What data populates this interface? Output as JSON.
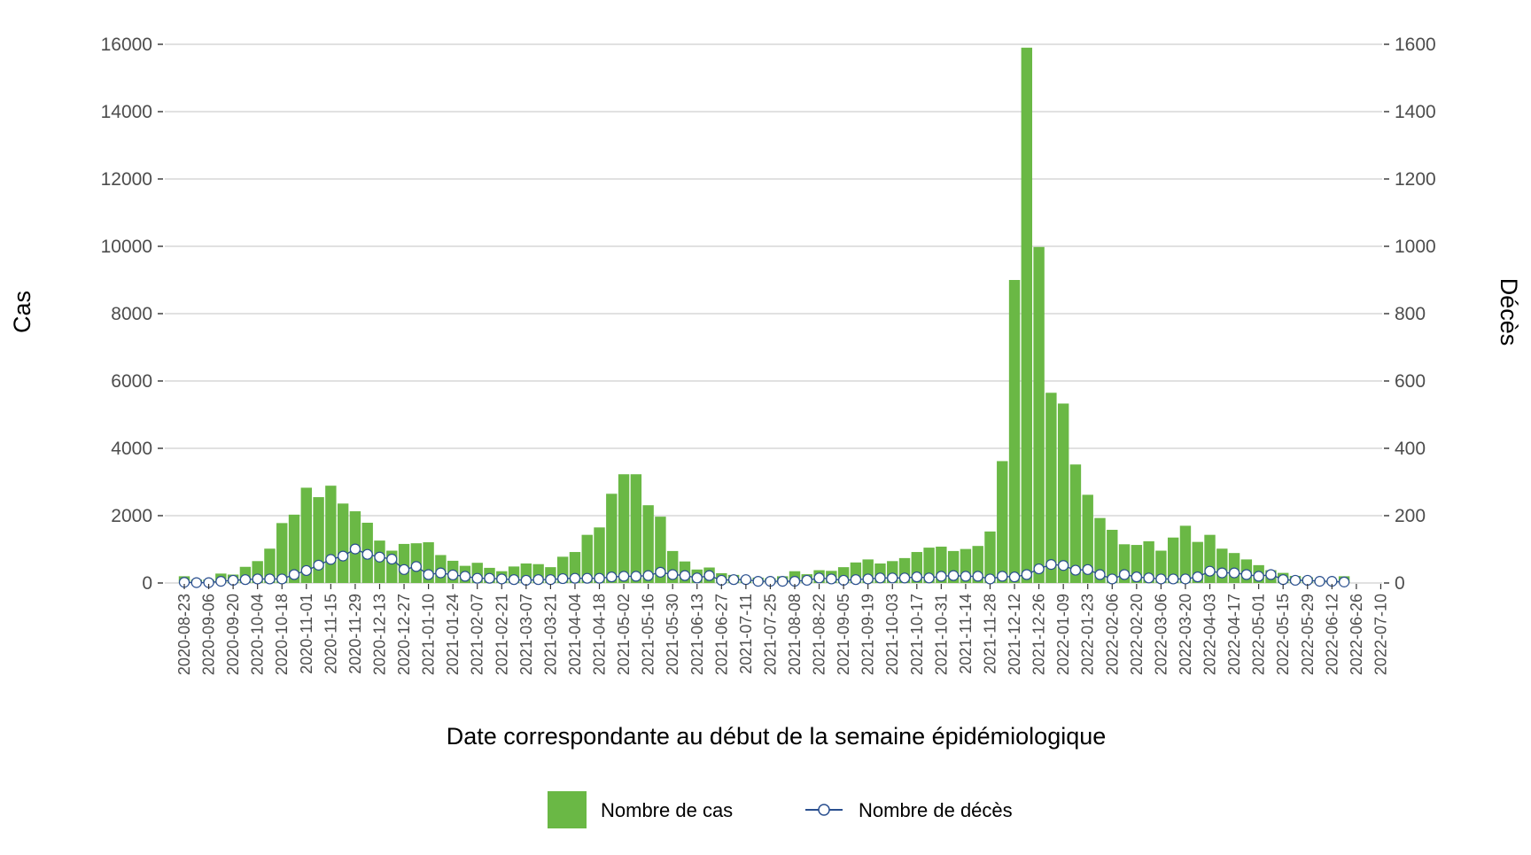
{
  "chart_data": {
    "type": "bar",
    "xlabel": "Date correspondante au début de la semaine épidémiologique",
    "ylabel": "Cas",
    "y2label": "Décès",
    "ylim": [
      0,
      16000
    ],
    "y2lim": [
      0,
      1600
    ],
    "yticks": [
      0,
      2000,
      4000,
      6000,
      8000,
      10000,
      12000,
      14000,
      16000
    ],
    "y2ticks": [
      0,
      200,
      400,
      600,
      800,
      1000,
      1200,
      1400,
      1600
    ],
    "grid": "horizontal",
    "legend_position": "bottom",
    "x_tick_labels": [
      "2020-08-23",
      "2020-09-06",
      "2020-09-20",
      "2020-10-04",
      "2020-10-18",
      "2020-11-01",
      "2020-11-15",
      "2020-11-29",
      "2020-12-13",
      "2020-12-27",
      "2021-01-10",
      "2021-01-24",
      "2021-02-07",
      "2021-02-21",
      "2021-03-07",
      "2021-03-21",
      "2021-04-04",
      "2021-04-18",
      "2021-05-02",
      "2021-05-16",
      "2021-05-30",
      "2021-06-13",
      "2021-06-27",
      "2021-07-11",
      "2021-07-25",
      "2021-08-08",
      "2021-08-22",
      "2021-09-05",
      "2021-09-19",
      "2021-10-03",
      "2021-10-17",
      "2021-10-31",
      "2021-11-14",
      "2021-11-28",
      "2021-12-12",
      "2021-12-26",
      "2022-01-09",
      "2022-01-23",
      "2022-02-06",
      "2022-02-20",
      "2022-03-06",
      "2022-03-20",
      "2022-04-03",
      "2022-04-17",
      "2022-05-01",
      "2022-05-15",
      "2022-05-29",
      "2022-06-12",
      "2022-06-26",
      "2022-07-10"
    ],
    "weeks_start": "2020-08-23",
    "series": [
      {
        "name": "Nombre de cas",
        "type": "bar",
        "color": "#6ab845",
        "values": [
          200,
          100,
          100,
          280,
          250,
          480,
          650,
          1020,
          1780,
          2030,
          2830,
          2550,
          2890,
          2360,
          2130,
          1790,
          1260,
          960,
          1160,
          1180,
          1210,
          830,
          660,
          510,
          600,
          450,
          350,
          490,
          580,
          560,
          470,
          780,
          920,
          1430,
          1650,
          2650,
          3230,
          3230,
          2310,
          1970,
          950,
          640,
          400,
          460,
          290,
          240,
          150,
          160,
          140,
          200,
          350,
          260,
          380,
          360,
          470,
          610,
          700,
          580,
          650,
          740,
          920,
          1050,
          1080,
          950,
          1010,
          1100,
          1530,
          3620,
          9000,
          15900,
          9980,
          5650,
          5330,
          3520,
          2620,
          1930,
          1580,
          1150,
          1130,
          1240,
          960,
          1350,
          1700,
          1220,
          1430,
          1020,
          890,
          700,
          530,
          380,
          300,
          210,
          170,
          90,
          60,
          200
        ],
        "pattern_note": "one bar per week"
      },
      {
        "name": "Nombre de décès",
        "type": "line",
        "color": "#2a4f8f",
        "values": [
          2,
          1,
          1,
          5,
          8,
          10,
          12,
          12,
          12,
          25,
          37,
          53,
          70,
          80,
          101,
          85,
          77,
          71,
          40,
          49,
          25,
          30,
          24,
          20,
          14,
          14,
          12,
          10,
          8,
          10,
          10,
          13,
          14,
          14,
          14,
          18,
          20,
          20,
          22,
          32,
          25,
          22,
          15,
          22,
          8,
          10,
          10,
          5,
          5,
          5,
          5,
          8,
          15,
          12,
          8,
          10,
          12,
          15,
          15,
          15,
          18,
          15,
          20,
          22,
          20,
          20,
          12,
          20,
          18,
          25,
          42,
          55,
          52,
          38,
          40,
          25,
          12,
          25,
          18,
          15,
          12,
          12,
          12,
          18,
          35,
          30,
          30,
          25,
          20,
          25,
          10,
          8,
          8,
          5,
          5,
          3
        ]
      }
    ]
  }
}
